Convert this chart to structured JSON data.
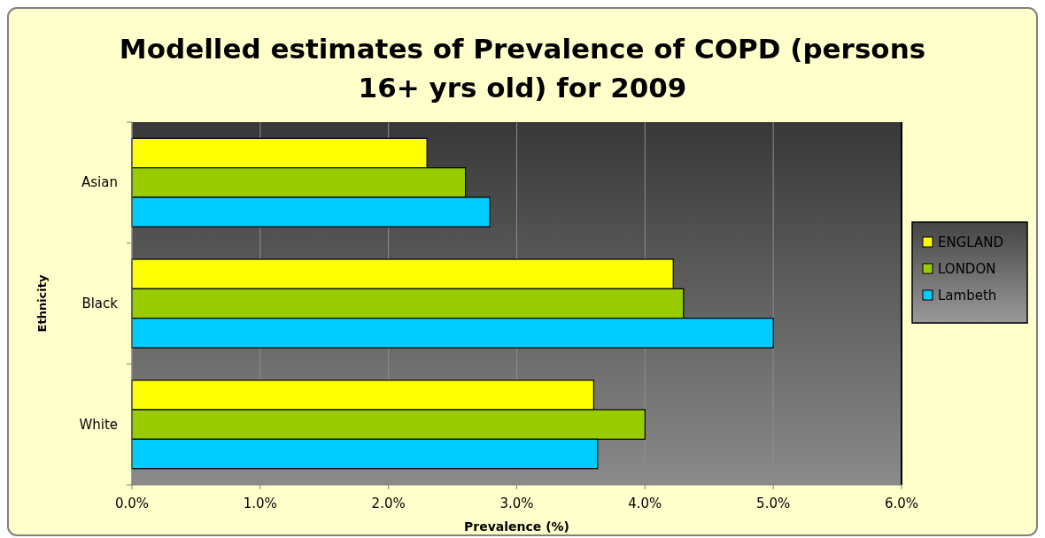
{
  "chart_data": {
    "type": "bar",
    "orientation": "horizontal",
    "title": "Modelled estimates of Prevalence of COPD (persons 16+ yrs old) for 2009",
    "xlabel": "Prevalence (%)",
    "ylabel": "Ethnicity",
    "categories": [
      "Asian",
      "Black",
      "White"
    ],
    "series": [
      {
        "name": "ENGLAND",
        "color": "#ffff00",
        "values": [
          2.3,
          4.22,
          3.6
        ]
      },
      {
        "name": "LONDON",
        "color": "#99cc00",
        "values": [
          2.6,
          4.3,
          4.0
        ]
      },
      {
        "name": "Lambeth",
        "color": "#00ccff",
        "values": [
          2.79,
          5.0,
          3.63
        ]
      }
    ],
    "xlim": [
      0,
      6
    ],
    "xticks": [
      {
        "value": 0,
        "label": "0.0%"
      },
      {
        "value": 1,
        "label": "1.0%"
      },
      {
        "value": 2,
        "label": "2.0%"
      },
      {
        "value": 3,
        "label": "3.0%"
      },
      {
        "value": 4,
        "label": "4.0%"
      },
      {
        "value": 5,
        "label": "5.0%"
      },
      {
        "value": 6,
        "label": "6.0%"
      }
    ],
    "grid": "x",
    "legend": "right"
  }
}
